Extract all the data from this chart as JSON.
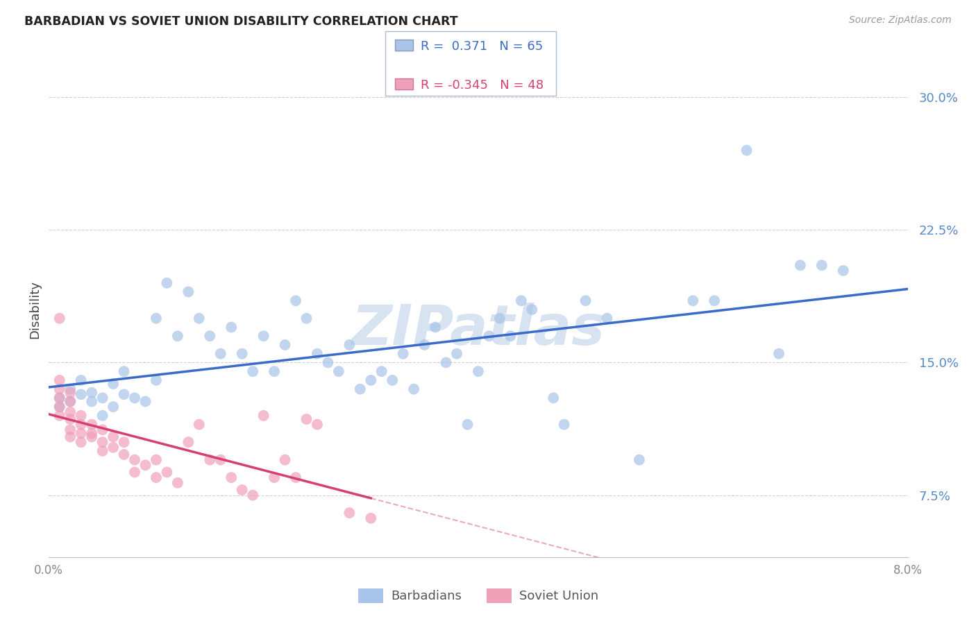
{
  "title": "BARBADIAN VS SOVIET UNION DISABILITY CORRELATION CHART",
  "source": "Source: ZipAtlas.com",
  "ylabel": "Disability",
  "ytick_values": [
    0.075,
    0.15,
    0.225,
    0.3
  ],
  "xlim": [
    0.0,
    0.08
  ],
  "ylim": [
    0.04,
    0.32
  ],
  "r_blue": 0.371,
  "n_blue": 65,
  "r_pink": -0.345,
  "n_pink": 48,
  "blue_color": "#a8c4e8",
  "pink_color": "#f0a0b8",
  "line_blue": "#3a6bc9",
  "line_pink": "#d64070",
  "watermark": "ZIPatlas",
  "legend_label_blue": "Barbadians",
  "legend_label_pink": "Soviet Union",
  "blue_scatter_x": [
    0.001,
    0.001,
    0.002,
    0.002,
    0.003,
    0.003,
    0.004,
    0.004,
    0.005,
    0.005,
    0.006,
    0.006,
    0.007,
    0.007,
    0.008,
    0.009,
    0.01,
    0.01,
    0.011,
    0.012,
    0.013,
    0.014,
    0.015,
    0.016,
    0.017,
    0.018,
    0.019,
    0.02,
    0.021,
    0.022,
    0.023,
    0.024,
    0.025,
    0.026,
    0.027,
    0.028,
    0.029,
    0.03,
    0.031,
    0.032,
    0.033,
    0.034,
    0.035,
    0.036,
    0.037,
    0.038,
    0.039,
    0.04,
    0.041,
    0.042,
    0.043,
    0.044,
    0.045,
    0.047,
    0.048,
    0.05,
    0.052,
    0.055,
    0.06,
    0.062,
    0.065,
    0.068,
    0.07,
    0.072,
    0.074
  ],
  "blue_scatter_y": [
    0.13,
    0.125,
    0.135,
    0.128,
    0.132,
    0.14,
    0.128,
    0.133,
    0.12,
    0.13,
    0.125,
    0.138,
    0.132,
    0.145,
    0.13,
    0.128,
    0.175,
    0.14,
    0.195,
    0.165,
    0.19,
    0.175,
    0.165,
    0.155,
    0.17,
    0.155,
    0.145,
    0.165,
    0.145,
    0.16,
    0.185,
    0.175,
    0.155,
    0.15,
    0.145,
    0.16,
    0.135,
    0.14,
    0.145,
    0.14,
    0.155,
    0.135,
    0.16,
    0.17,
    0.15,
    0.155,
    0.115,
    0.145,
    0.165,
    0.175,
    0.165,
    0.185,
    0.18,
    0.13,
    0.115,
    0.185,
    0.175,
    0.095,
    0.185,
    0.185,
    0.27,
    0.155,
    0.205,
    0.205,
    0.202
  ],
  "pink_scatter_x": [
    0.001,
    0.001,
    0.001,
    0.001,
    0.001,
    0.001,
    0.002,
    0.002,
    0.002,
    0.002,
    0.002,
    0.002,
    0.003,
    0.003,
    0.003,
    0.003,
    0.004,
    0.004,
    0.004,
    0.005,
    0.005,
    0.005,
    0.006,
    0.006,
    0.007,
    0.007,
    0.008,
    0.008,
    0.009,
    0.01,
    0.01,
    0.011,
    0.012,
    0.013,
    0.014,
    0.015,
    0.016,
    0.017,
    0.018,
    0.019,
    0.02,
    0.021,
    0.022,
    0.023,
    0.024,
    0.025,
    0.028,
    0.03
  ],
  "pink_scatter_y": [
    0.13,
    0.135,
    0.125,
    0.12,
    0.14,
    0.175,
    0.128,
    0.133,
    0.122,
    0.118,
    0.112,
    0.108,
    0.115,
    0.11,
    0.105,
    0.12,
    0.11,
    0.108,
    0.115,
    0.105,
    0.1,
    0.112,
    0.108,
    0.102,
    0.098,
    0.105,
    0.095,
    0.088,
    0.092,
    0.085,
    0.095,
    0.088,
    0.082,
    0.105,
    0.115,
    0.095,
    0.095,
    0.085,
    0.078,
    0.075,
    0.12,
    0.085,
    0.095,
    0.085,
    0.118,
    0.115,
    0.065,
    0.062
  ]
}
